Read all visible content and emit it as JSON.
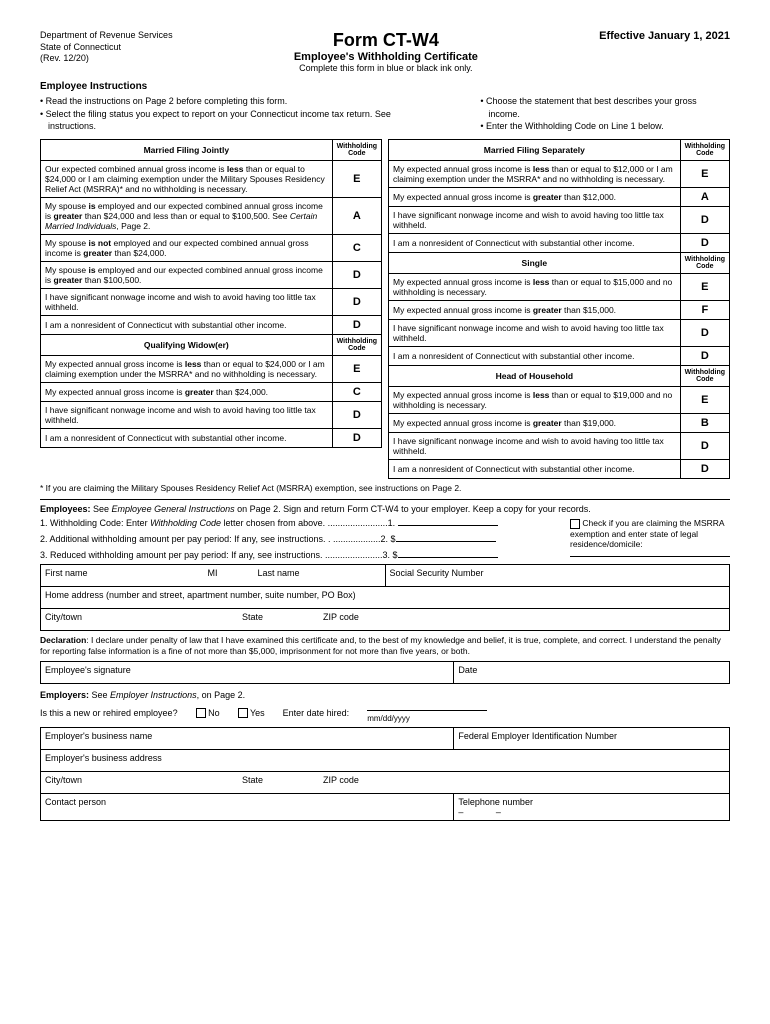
{
  "header": {
    "dept1": "Department of Revenue Services",
    "dept2": "State of Connecticut",
    "rev": "(Rev. 12/20)",
    "title": "Form CT-W4",
    "subtitle": "Employee's Withholding Certificate",
    "note": "Complete this form in blue or black ink only.",
    "effective": "Effective January 1, 2021"
  },
  "instructions_title": "Employee Instructions",
  "bullets_left": [
    "Read the instructions on Page 2 before completing this form.",
    "Select the filing status you expect to report on your Connecticut income tax return. See instructions."
  ],
  "bullets_right": [
    "Choose the statement that best describes your gross income.",
    "Enter the Withholding Code on Line 1 below."
  ],
  "code_header": "Withholding Code",
  "mfj": {
    "title": "Married Filing Jointly",
    "rows": [
      {
        "text": "Our expected combined annual gross income is <b>less</b> than or equal to $24,000 or I am claiming exemption under the Military Spouses Residency Relief Act (MSRRA)* and no withholding is necessary.",
        "code": "E"
      },
      {
        "text": "My spouse <b>is</b> employed and our expected combined annual gross income is <b>greater</b> than $24,000 and less than or equal to $100,500. See <i>Certain Married Individuals</i>, Page 2.",
        "code": "A"
      },
      {
        "text": "My spouse <b>is not</b> employed and our expected combined annual gross income is <b>greater</b> than $24,000.",
        "code": "C"
      },
      {
        "text": "My spouse <b>is</b> employed and our expected combined annual gross income is <b>greater</b> than $100,500.",
        "code": "D"
      },
      {
        "text": "I have significant nonwage income and wish to avoid having too little tax withheld.",
        "code": "D"
      },
      {
        "text": "I am a nonresident of Connecticut with substantial other income.",
        "code": "D"
      }
    ]
  },
  "qw": {
    "title": "Qualifying Widow(er)",
    "rows": [
      {
        "text": "My expected annual gross income is <b>less</b> than or equal to $24,000 or I am claiming exemption under the MSRRA* and no withholding is necessary.",
        "code": "E"
      },
      {
        "text": "My expected annual gross income is <b>greater</b> than $24,000.",
        "code": "C"
      },
      {
        "text": "I have significant nonwage income and wish to avoid having too little tax withheld.",
        "code": "D"
      },
      {
        "text": "I am a nonresident of Connecticut with substantial other income.",
        "code": "D"
      }
    ]
  },
  "mfs": {
    "title": "Married Filing Separately",
    "rows": [
      {
        "text": "My expected annual gross income is <b>less</b> than or equal to $12,000 or I am claiming exemption under the MSRRA* and no withholding is necessary.",
        "code": "E"
      },
      {
        "text": "My expected annual gross income is <b>greater</b> than $12,000.",
        "code": "A"
      },
      {
        "text": "I have significant nonwage income and wish to avoid having too little tax withheld.",
        "code": "D"
      },
      {
        "text": "I am a nonresident of Connecticut with substantial other income.",
        "code": "D"
      }
    ]
  },
  "single": {
    "title": "Single",
    "rows": [
      {
        "text": "My expected annual gross income is <b>less</b> than or equal to $15,000 and no withholding is necessary.",
        "code": "E"
      },
      {
        "text": "My expected annual gross income is <b>greater</b> than $15,000.",
        "code": "F"
      },
      {
        "text": "I have significant nonwage income and wish to avoid having too little tax withheld.",
        "code": "D"
      },
      {
        "text": "I am a nonresident of Connecticut with substantial other income.",
        "code": "D"
      }
    ]
  },
  "hoh": {
    "title": "Head of Household",
    "rows": [
      {
        "text": "My expected annual gross income is <b>less</b> than or equal to $19,000 and no withholding is necessary.",
        "code": "E"
      },
      {
        "text": "My expected annual gross income is <b>greater</b> than $19,000.",
        "code": "B"
      },
      {
        "text": "I have significant nonwage income and wish to avoid having too little tax withheld.",
        "code": "D"
      },
      {
        "text": "I am a nonresident of Connecticut with substantial other income.",
        "code": "D"
      }
    ]
  },
  "footnote": "* If you are claiming the Military Spouses Residency Relief Act (MSRRA) exemption, see instructions on Page 2.",
  "employees_intro": "<b>Employees:</b> See <i>Employee General Instructions</i> on Page 2. Sign and return Form CT-W4 to your employer. Keep a copy for your records.",
  "line1": "1.  Withholding Code: Enter <i>Withholding Code</i> letter chosen from above. ........................1.",
  "line2": "2.  Additional withholding amount per pay period: If any, see instructions. . ...................2. $",
  "line3": "3.  Reduced withholding amount per pay period: If any, see instructions. .......................3. $",
  "side_note": "Check if you are claiming the MSRRA exemption and enter state of legal residence/domicile:",
  "labels": {
    "first_name": "First name",
    "mi": "MI",
    "last_name": "Last name",
    "ssn": "Social Security Number",
    "home_addr": "Home address (number and street, apartment number, suite number, PO Box)",
    "city": "City/town",
    "state": "State",
    "zip": "ZIP code",
    "emp_sig": "Employee's signature",
    "date": "Date",
    "emp_biz_name": "Employer's business name",
    "fein": "Federal Employer Identification Number",
    "emp_biz_addr": "Employer's business address",
    "contact": "Contact person",
    "telephone": "Telephone number"
  },
  "declaration": "<b>Declaration</b>: I declare under penalty of law that I have examined this certificate and, to the best of my knowledge and belief, it is true, complete, and correct. I understand the penalty for reporting false information is a fine of not more than $5,000, imprisonment for not more than five years, or both.",
  "employers_intro": "<b>Employers:</b> See <i>Employer Instructions</i>, on Page 2.",
  "hire_q": "Is this a new or rehired employee?",
  "no": "No",
  "yes": "Yes",
  "date_hired": "Enter date hired:",
  "date_fmt": "mm/dd/yyyy",
  "tel_dashes": "–             –"
}
